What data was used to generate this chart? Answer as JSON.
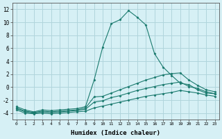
{
  "xlabel": "Humidex (Indice chaleur)",
  "background_color": "#d6f0f5",
  "grid_color": "#b0d5dc",
  "line_color": "#1a7a6e",
  "xlim": [
    -0.5,
    23.5
  ],
  "ylim": [
    -5,
    13
  ],
  "xticks": [
    0,
    1,
    2,
    3,
    4,
    5,
    6,
    7,
    8,
    9,
    10,
    11,
    12,
    13,
    14,
    15,
    16,
    17,
    18,
    19,
    20,
    21,
    22,
    23
  ],
  "yticks": [
    -4,
    -2,
    0,
    2,
    4,
    6,
    8,
    10,
    12
  ],
  "series": [
    {
      "x": [
        0,
        1,
        2,
        3,
        4,
        5,
        6,
        7,
        8,
        9,
        10,
        11,
        12,
        13,
        14,
        15,
        16,
        17,
        18,
        19,
        20,
        21,
        22,
        23
      ],
      "y": [
        -3.0,
        -3.5,
        -3.8,
        -3.5,
        -3.6,
        -3.5,
        -3.4,
        -3.3,
        -3.0,
        1.1,
        6.2,
        9.8,
        10.4,
        11.8,
        10.8,
        9.6,
        5.2,
        3.1,
        1.8,
        0.6,
        0.4,
        -0.4,
        -0.9,
        -1.0
      ]
    },
    {
      "x": [
        0,
        1,
        2,
        3,
        4,
        5,
        6,
        7,
        8,
        9,
        10,
        11,
        12,
        13,
        14,
        15,
        16,
        17,
        18,
        19,
        20,
        21,
        22,
        23
      ],
      "y": [
        -3.2,
        -3.7,
        -3.9,
        -3.7,
        -3.8,
        -3.7,
        -3.6,
        -3.5,
        -3.2,
        -1.5,
        -1.4,
        -0.9,
        -0.4,
        0.1,
        0.6,
        1.1,
        1.5,
        1.9,
        2.1,
        2.2,
        1.1,
        0.3,
        -0.4,
        -0.7
      ]
    },
    {
      "x": [
        0,
        1,
        2,
        3,
        4,
        5,
        6,
        7,
        8,
        9,
        10,
        11,
        12,
        13,
        14,
        15,
        16,
        17,
        18,
        19,
        20,
        21,
        22,
        23
      ],
      "y": [
        -3.3,
        -3.8,
        -4.0,
        -3.8,
        -3.9,
        -3.8,
        -3.7,
        -3.6,
        -3.4,
        -2.3,
        -2.1,
        -1.6,
        -1.3,
        -0.9,
        -0.5,
        -0.2,
        0.1,
        0.4,
        0.6,
        0.8,
        0.1,
        -0.2,
        -0.7,
        -1.0
      ]
    },
    {
      "x": [
        0,
        1,
        2,
        3,
        4,
        5,
        6,
        7,
        8,
        9,
        10,
        11,
        12,
        13,
        14,
        15,
        16,
        17,
        18,
        19,
        20,
        21,
        22,
        23
      ],
      "y": [
        -3.5,
        -4.0,
        -4.1,
        -4.0,
        -4.1,
        -4.0,
        -3.9,
        -3.8,
        -3.7,
        -3.2,
        -2.9,
        -2.6,
        -2.3,
        -2.0,
        -1.7,
        -1.4,
        -1.2,
        -1.0,
        -0.8,
        -0.5,
        -0.7,
        -0.9,
        -1.2,
        -1.4
      ]
    }
  ]
}
